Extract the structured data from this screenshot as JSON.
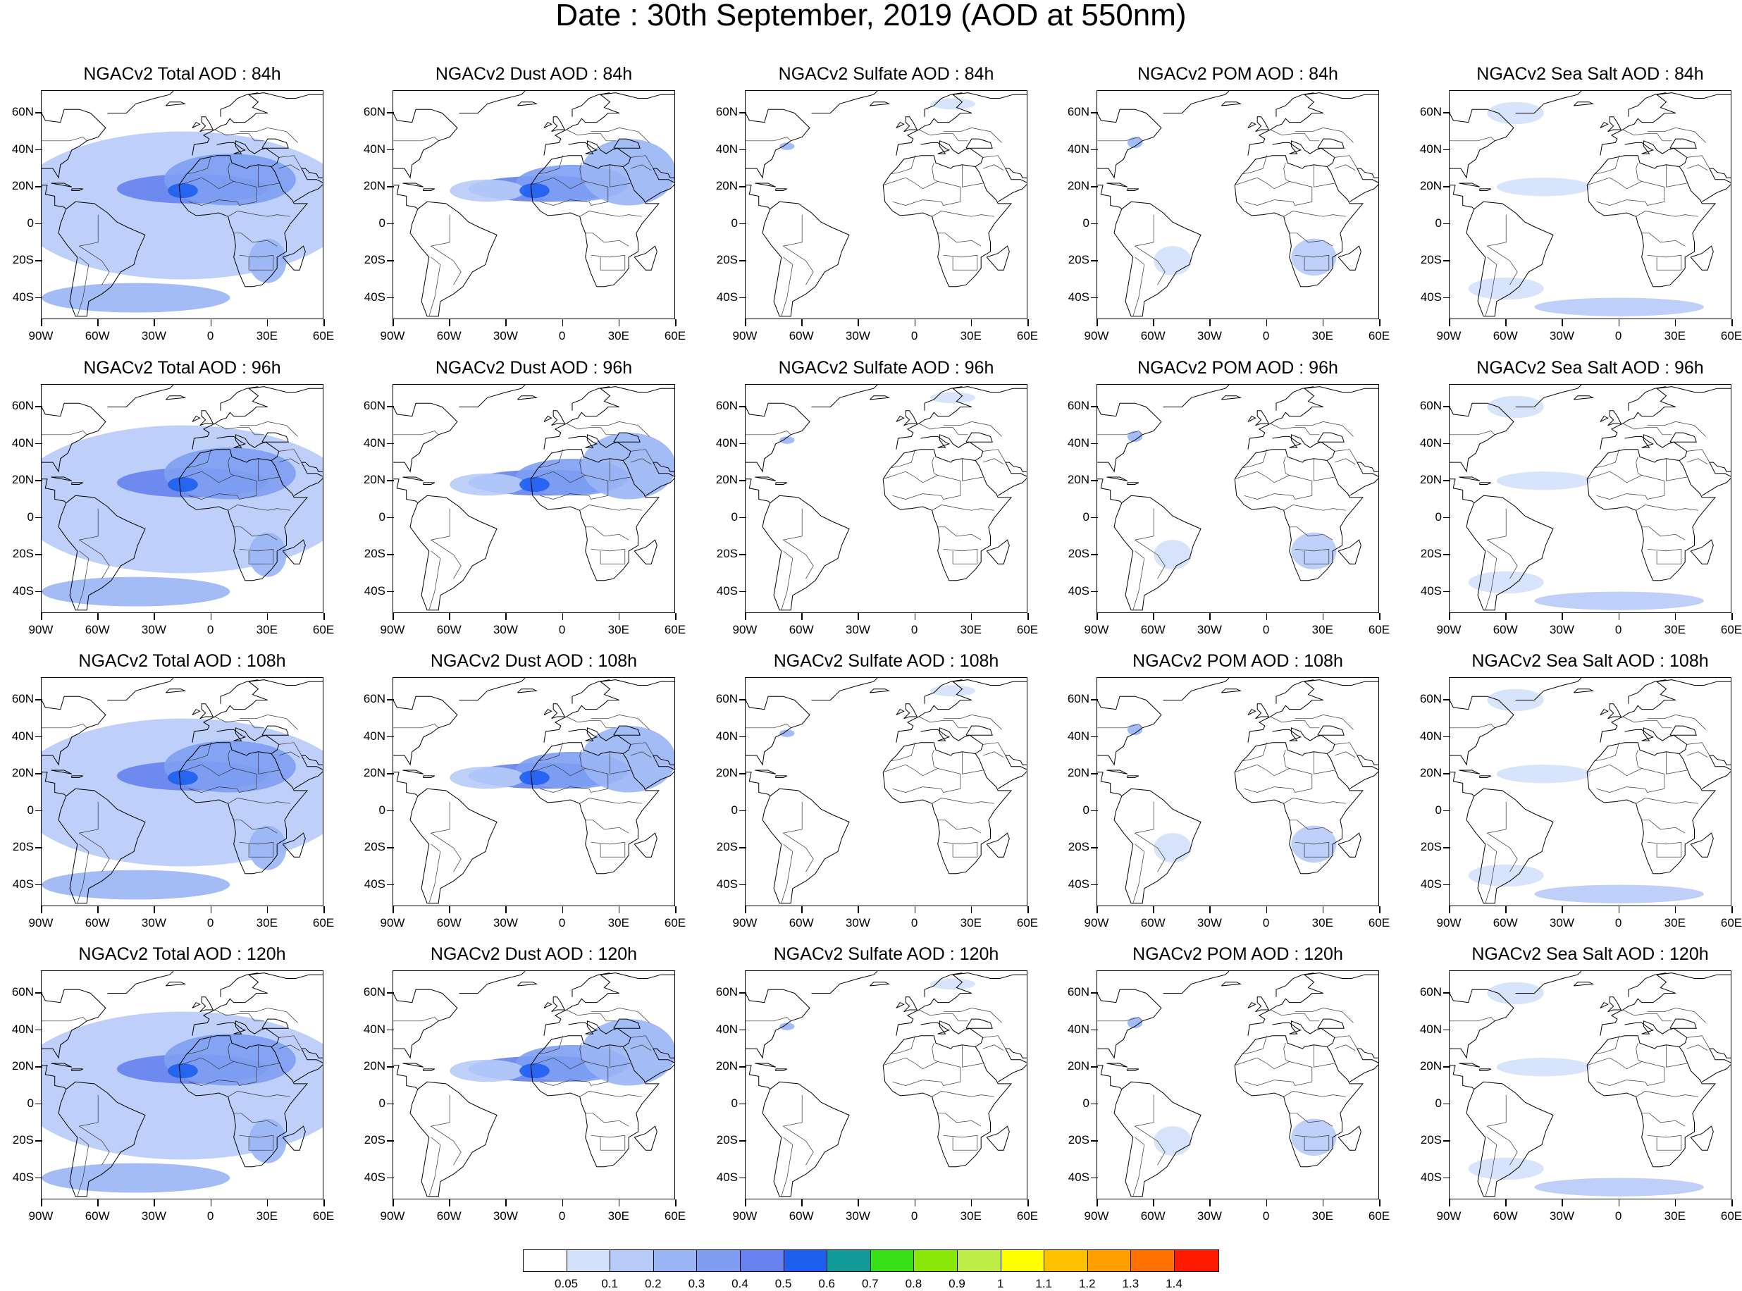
{
  "title": "Date : 30th September, 2019 (AOD at 550nm)",
  "axes": {
    "lat_labels": [
      "60N",
      "40N",
      "20N",
      "0",
      "20S",
      "40S"
    ],
    "lat_values": [
      60,
      40,
      20,
      0,
      -20,
      -40
    ],
    "lon_labels": [
      "90W",
      "60W",
      "30W",
      "0",
      "30E",
      "60E"
    ],
    "lon_values": [
      -90,
      -60,
      -30,
      0,
      30,
      60
    ],
    "lat_range": [
      -52,
      72
    ],
    "lon_range": [
      -90,
      60
    ]
  },
  "panels": [
    {
      "title": "NGACv2 Total AOD : 84h",
      "species": "total",
      "hour": 84
    },
    {
      "title": "NGACv2 Dust AOD : 84h",
      "species": "dust",
      "hour": 84
    },
    {
      "title": "NGACv2 Sulfate AOD : 84h",
      "species": "sulfate",
      "hour": 84
    },
    {
      "title": "NGACv2 POM AOD : 84h",
      "species": "pom",
      "hour": 84
    },
    {
      "title": "NGACv2 Sea Salt AOD : 84h",
      "species": "seasalt",
      "hour": 84
    },
    {
      "title": "NGACv2 Total AOD : 96h",
      "species": "total",
      "hour": 96
    },
    {
      "title": "NGACv2 Dust AOD : 96h",
      "species": "dust",
      "hour": 96
    },
    {
      "title": "NGACv2 Sulfate AOD : 96h",
      "species": "sulfate",
      "hour": 96
    },
    {
      "title": "NGACv2 POM AOD : 96h",
      "species": "pom",
      "hour": 96
    },
    {
      "title": "NGACv2 Sea Salt AOD : 96h",
      "species": "seasalt",
      "hour": 96
    },
    {
      "title": "NGACv2 Total AOD : 108h",
      "species": "total",
      "hour": 108
    },
    {
      "title": "NGACv2 Dust AOD : 108h",
      "species": "dust",
      "hour": 108
    },
    {
      "title": "NGACv2 Sulfate AOD : 108h",
      "species": "sulfate",
      "hour": 108
    },
    {
      "title": "NGACv2 POM AOD : 108h",
      "species": "pom",
      "hour": 108
    },
    {
      "title": "NGACv2 Sea Salt AOD : 108h",
      "species": "seasalt",
      "hour": 108
    },
    {
      "title": "NGACv2 Total AOD : 120h",
      "species": "total",
      "hour": 120
    },
    {
      "title": "NGACv2 Dust AOD : 120h",
      "species": "dust",
      "hour": 120
    },
    {
      "title": "NGACv2 Sulfate AOD : 120h",
      "species": "sulfate",
      "hour": 120
    },
    {
      "title": "NGACv2 POM AOD : 120h",
      "species": "pom",
      "hour": 120
    },
    {
      "title": "NGACv2 Sea Salt  AOD : 120h",
      "species": "seasalt",
      "hour": 120
    }
  ],
  "colorbar": {
    "labels": [
      "0.05",
      "0.1",
      "0.2",
      "0.3",
      "0.4",
      "0.5",
      "0.6",
      "0.7",
      "0.8",
      "0.9",
      "1",
      "1.1",
      "1.2",
      "1.3",
      "1.4"
    ],
    "colors": [
      "#ffffff",
      "#d4e1fb",
      "#b7cbf8",
      "#9ab5f5",
      "#7d9ef2",
      "#6582ee",
      "#1e5ff0",
      "#129a98",
      "#38e018",
      "#8ae808",
      "#c0ee48",
      "#ffff00",
      "#ffc000",
      "#ffa000",
      "#ff7000",
      "#ff1a00"
    ]
  }
}
